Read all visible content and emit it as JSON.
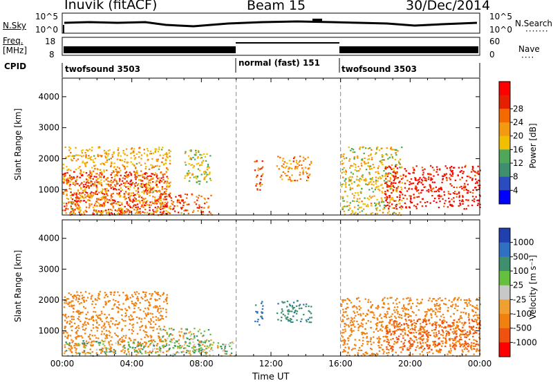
{
  "header": {
    "station": "Inuvik (fitACF)",
    "beam": "Beam 15",
    "date": "30/Dec/2014"
  },
  "status_panels": {
    "nsky_label": "N.Sky",
    "nsky_ticks": [
      "10^5",
      "10^0"
    ],
    "nsearch_label": "N.Search",
    "nsearch_ticks": [
      "10^5",
      "10^0"
    ],
    "freq_label": "Freq.",
    "freq_unit": "[MHz]",
    "freq_ticks": [
      "18",
      "8"
    ],
    "nave_label": "Nave",
    "nave_ticks": [
      "60",
      "0"
    ],
    "cpid_label": "CPID",
    "cpid_segments": [
      {
        "name": "twofsound 3503",
        "start_hour": 0,
        "end_hour": 10
      },
      {
        "name": "normal (fast) 151",
        "start_hour": 10,
        "end_hour": 16
      },
      {
        "name": "twofsound 3503",
        "start_hour": 16,
        "end_hour": 24
      }
    ]
  },
  "colors": {
    "power": [
      "#0000ff",
      "#2a4cc0",
      "#3f8f6e",
      "#4fa85a",
      "#f0c000",
      "#f39a10",
      "#f56a00",
      "#e52000",
      "#ff0000"
    ],
    "velocity": [
      "#2040b0",
      "#3070c0",
      "#3f8f6e",
      "#66c040",
      "#c8c8c8",
      "#f0a030",
      "#f08010",
      "#f05010",
      "#ff0000"
    ]
  },
  "chart_data": [
    {
      "type": "heatmap",
      "name": "power-panel",
      "ylabel": "Slant Range [km]",
      "y_ticks": [
        "1000",
        "2000",
        "3000",
        "4000"
      ],
      "ylim": [
        180,
        4600
      ],
      "x_ticks": [
        "00:00",
        "04:00",
        "08:00",
        "12:00",
        "16:00",
        "20:00",
        "00:00"
      ],
      "xlim": [
        0,
        24
      ],
      "colorbar": {
        "label": "Power [dB]",
        "ticks": [
          "4",
          "8",
          "12",
          "16",
          "20",
          "24",
          "28"
        ],
        "range": [
          0,
          30
        ]
      },
      "regions": [
        {
          "t0": 0.0,
          "t1": 6.0,
          "r0": 200,
          "r1": 1600,
          "level": 28
        },
        {
          "t0": 0.0,
          "t1": 6.2,
          "r0": 200,
          "r1": 2400,
          "level": 18
        },
        {
          "t0": 5.5,
          "t1": 8.6,
          "r0": 200,
          "r1": 900,
          "level": 24
        },
        {
          "t0": 7.0,
          "t1": 8.5,
          "r0": 1200,
          "r1": 2300,
          "level": 14
        },
        {
          "t0": 11.0,
          "t1": 11.5,
          "r0": 1000,
          "r1": 2000,
          "level": 22
        },
        {
          "t0": 12.3,
          "t1": 14.3,
          "r0": 1300,
          "r1": 2100,
          "level": 20
        },
        {
          "t0": 16.0,
          "t1": 19.5,
          "r0": 200,
          "r1": 2400,
          "level": 16
        },
        {
          "t0": 18.5,
          "t1": 24.0,
          "r0": 400,
          "r1": 1800,
          "level": 28
        }
      ]
    },
    {
      "type": "heatmap",
      "name": "velocity-panel",
      "ylabel": "Slant Range [km]",
      "y_ticks": [
        "1000",
        "2000",
        "3000",
        "4000"
      ],
      "ylim": [
        180,
        4600
      ],
      "x_ticks": [
        "00:00",
        "04:00",
        "08:00",
        "12:00",
        "16:00",
        "20:00",
        "00:00"
      ],
      "xlim": [
        0,
        24
      ],
      "xlabel": "Time UT",
      "colorbar": {
        "label": "Velocity [m s⁻¹]",
        "ticks": [
          "1000",
          "500",
          "100",
          "25",
          "-25",
          "-100",
          "-500",
          "-1000"
        ]
      },
      "regions": [
        {
          "t0": 0.0,
          "t1": 6.0,
          "r0": 300,
          "r1": 2300,
          "level": -300
        },
        {
          "t0": 0.0,
          "t1": 10.0,
          "r0": 200,
          "r1": 700,
          "level": 50
        },
        {
          "t0": 5.5,
          "t1": 8.6,
          "r0": 300,
          "r1": 1100,
          "level": 10
        },
        {
          "t0": 11.0,
          "t1": 11.5,
          "r0": 1200,
          "r1": 2000,
          "level": 600
        },
        {
          "t0": 12.3,
          "t1": 14.3,
          "r0": 1300,
          "r1": 2000,
          "level": 400
        },
        {
          "t0": 16.0,
          "t1": 24.0,
          "r0": 200,
          "r1": 2100,
          "level": -300
        },
        {
          "t0": 18.5,
          "t1": 24.0,
          "r0": 400,
          "r1": 1400,
          "level": -600
        }
      ]
    }
  ]
}
